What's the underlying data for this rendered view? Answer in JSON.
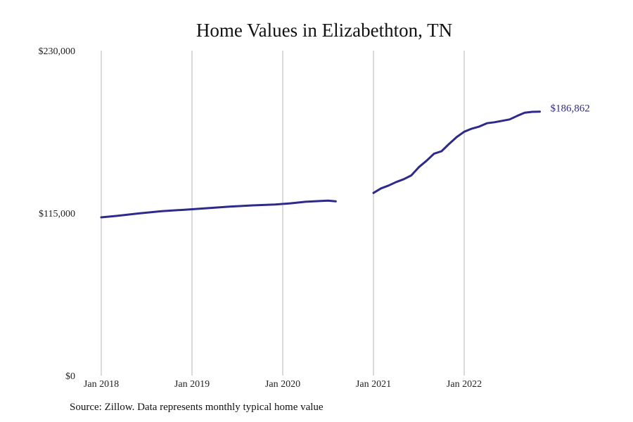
{
  "chart_data": {
    "type": "line",
    "title": "Home Values in Elizabethton, TN",
    "xlabel": "",
    "ylabel": "",
    "ylim": [
      0,
      230000
    ],
    "y_ticks": [
      {
        "value": 0,
        "label": "$0"
      },
      {
        "value": 115000,
        "label": "$115,000"
      },
      {
        "value": 230000,
        "label": "$230,000"
      }
    ],
    "x_ticks": [
      {
        "value": "2018-01",
        "label": "Jan 2018"
      },
      {
        "value": "2019-01",
        "label": "Jan 2019"
      },
      {
        "value": "2020-01",
        "label": "Jan 2020"
      },
      {
        "value": "2021-01",
        "label": "Jan 2021"
      },
      {
        "value": "2022-01",
        "label": "Jan 2022"
      }
    ],
    "grid": "vertical",
    "series": [
      {
        "color": "#2e2a8c",
        "segments": [
          [
            {
              "x": "2018-01",
              "y": 112000
            },
            {
              "x": "2018-03",
              "y": 113000
            },
            {
              "x": "2018-06",
              "y": 114800
            },
            {
              "x": "2018-09",
              "y": 116400
            },
            {
              "x": "2018-12",
              "y": 117400
            },
            {
              "x": "2019-03",
              "y": 118500
            },
            {
              "x": "2019-06",
              "y": 119600
            },
            {
              "x": "2019-09",
              "y": 120500
            },
            {
              "x": "2019-12",
              "y": 121100
            },
            {
              "x": "2020-02",
              "y": 121900
            },
            {
              "x": "2020-04",
              "y": 123000
            },
            {
              "x": "2020-06",
              "y": 123600
            },
            {
              "x": "2020-07",
              "y": 123800
            },
            {
              "x": "2020-08",
              "y": 123300
            }
          ],
          [
            {
              "x": "2021-01",
              "y": 129300
            },
            {
              "x": "2021-02",
              "y": 132500
            },
            {
              "x": "2021-03",
              "y": 134500
            },
            {
              "x": "2021-04",
              "y": 137000
            },
            {
              "x": "2021-05",
              "y": 139000
            },
            {
              "x": "2021-06",
              "y": 141700
            },
            {
              "x": "2021-07",
              "y": 147500
            },
            {
              "x": "2021-08",
              "y": 152000
            },
            {
              "x": "2021-09",
              "y": 157000
            },
            {
              "x": "2021-10",
              "y": 158800
            },
            {
              "x": "2021-11",
              "y": 164000
            },
            {
              "x": "2021-12",
              "y": 168800
            },
            {
              "x": "2022-01",
              "y": 172600
            },
            {
              "x": "2022-02",
              "y": 174800
            },
            {
              "x": "2022-03",
              "y": 176300
            },
            {
              "x": "2022-04",
              "y": 178600
            },
            {
              "x": "2022-05",
              "y": 179300
            },
            {
              "x": "2022-06",
              "y": 180300
            },
            {
              "x": "2022-07",
              "y": 181300
            },
            {
              "x": "2022-08",
              "y": 183800
            },
            {
              "x": "2022-09",
              "y": 186100
            },
            {
              "x": "2022-10",
              "y": 186700
            },
            {
              "x": "2022-11",
              "y": 186862
            }
          ]
        ],
        "end_label": "$186,862"
      }
    ]
  },
  "footer": {
    "source": "Source: Zillow. Data represents monthly typical home value"
  }
}
